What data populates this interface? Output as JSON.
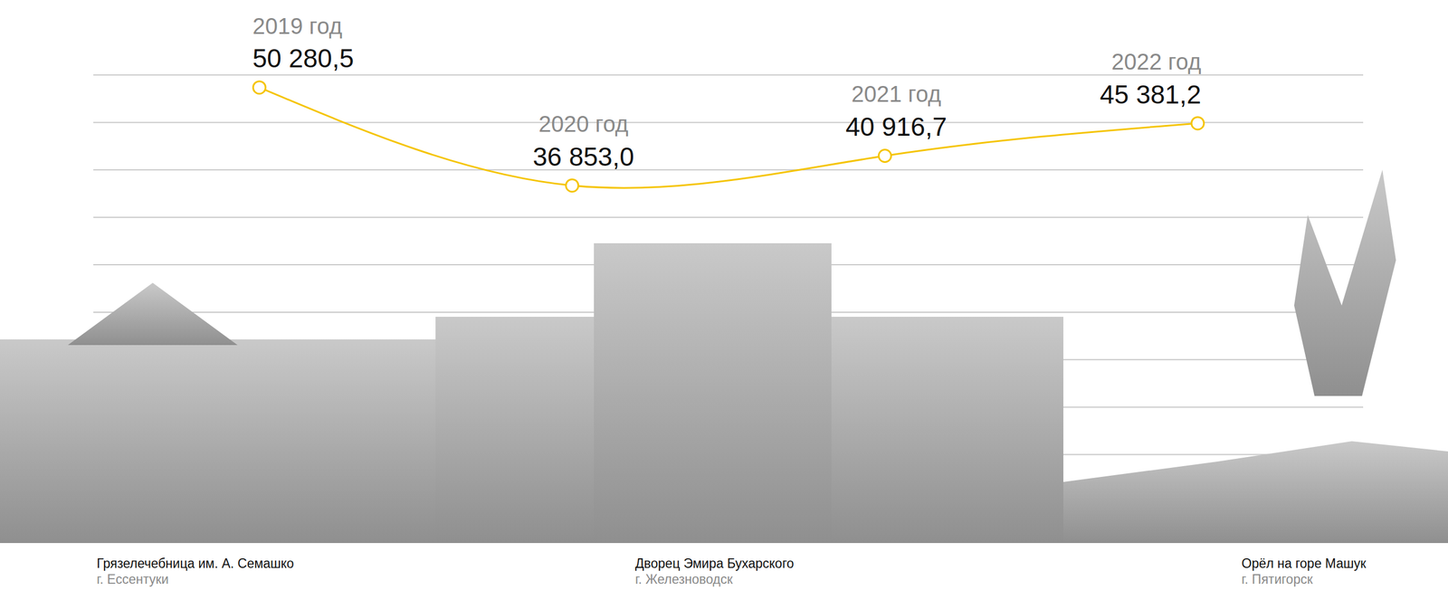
{
  "chart_data": {
    "type": "line",
    "categories": [
      "2019 год",
      "2020 год",
      "2021 год",
      "2022 год"
    ],
    "values": [
      50280.5,
      36853.0,
      40916.7,
      45381.2
    ],
    "value_labels": [
      "50 280,5",
      "36 853,0",
      "40 916,7",
      "45 381,2"
    ],
    "color": "#f5c400",
    "marker": "circle",
    "line_style": "smooth",
    "data_labels": true,
    "ylim": [
      0,
      52000
    ],
    "yticks": [
      0,
      6500,
      13000,
      19500,
      26000,
      32500,
      39000,
      45500,
      52000
    ],
    "grid": true,
    "tick_labels": false,
    "annotations": [
      {
        "text": "Грязелечебница им. А. Семашко",
        "subtext": "г. Ессентуки"
      },
      {
        "text": "Дворец Эмира Бухарского",
        "subtext": "г. Железноводск"
      },
      {
        "text": "Орёл на горе Машук",
        "subtext": "г. Пятигорск"
      }
    ]
  }
}
